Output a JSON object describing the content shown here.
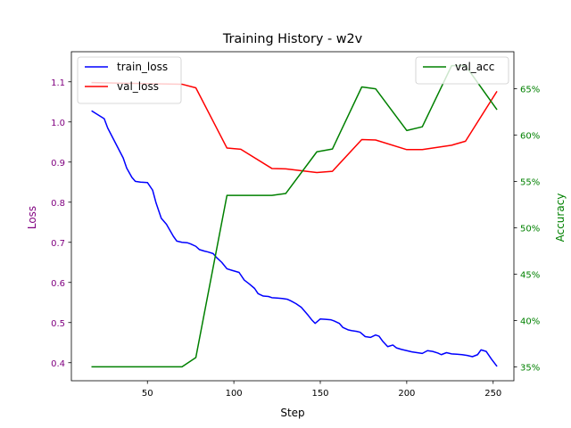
{
  "chart_data": {
    "type": "line",
    "title": "Training History - w2v",
    "xlabel": "Step",
    "ylabel_left": "Loss",
    "ylabel_right": "Accuracy",
    "xlim": [
      6,
      262
    ],
    "ylim_left": [
      0.355,
      1.175
    ],
    "ylim_right": [
      0.335,
      0.69
    ],
    "x_ticks": [
      50,
      100,
      150,
      200,
      250
    ],
    "x_tick_labels": [
      "50",
      "100",
      "150",
      "200",
      "250"
    ],
    "y_left_ticks": [
      0.4,
      0.5,
      0.6,
      0.7,
      0.8,
      0.9,
      1.0,
      1.1
    ],
    "y_left_tick_labels": [
      "0.4",
      "0.5",
      "0.6",
      "0.7",
      "0.8",
      "0.9",
      "1.0",
      "1.1"
    ],
    "y_right_ticks": [
      0.35,
      0.4,
      0.45,
      0.5,
      0.55,
      0.6,
      0.65
    ],
    "y_right_tick_labels": [
      "35%",
      "40%",
      "45%",
      "50%",
      "55%",
      "60%",
      "65%"
    ],
    "grid": false,
    "left_legend_placement": "upper-left",
    "right_legend_placement": "upper-right",
    "colors": {
      "train_loss": "#0000ff",
      "val_loss": "#ff0000",
      "val_acc": "#008000",
      "left_axis_text": "#800080",
      "right_axis_text": "#008000"
    },
    "series": [
      {
        "name": "train_loss",
        "axis": "left",
        "x": [
          18,
          22,
          25,
          27,
          30,
          33,
          36,
          38,
          41,
          43,
          46,
          50,
          53,
          55,
          58,
          61,
          63,
          65,
          67,
          70,
          73,
          75,
          78,
          80,
          83,
          85,
          88,
          90,
          93,
          96,
          99,
          103,
          106,
          109,
          112,
          114,
          117,
          120,
          122,
          125,
          128,
          131,
          133,
          136,
          139,
          141,
          143,
          145,
          147,
          150,
          153,
          156,
          158,
          161,
          163,
          166,
          168,
          171,
          173,
          176,
          179,
          182,
          184,
          186,
          189,
          192,
          194,
          197,
          200,
          203,
          206,
          209,
          212,
          215,
          218,
          220,
          223,
          226,
          229,
          232,
          235,
          238,
          241,
          243,
          246,
          249,
          252
        ],
        "values": [
          1.027,
          1.016,
          1.008,
          0.985,
          0.96,
          0.935,
          0.91,
          0.885,
          0.862,
          0.852,
          0.85,
          0.849,
          0.83,
          0.798,
          0.76,
          0.745,
          0.73,
          0.715,
          0.703,
          0.7,
          0.699,
          0.696,
          0.69,
          0.682,
          0.678,
          0.676,
          0.672,
          0.662,
          0.65,
          0.634,
          0.63,
          0.625,
          0.606,
          0.596,
          0.585,
          0.572,
          0.566,
          0.565,
          0.562,
          0.561,
          0.56,
          0.558,
          0.554,
          0.547,
          0.538,
          0.528,
          0.518,
          0.507,
          0.498,
          0.509,
          0.508,
          0.507,
          0.504,
          0.498,
          0.488,
          0.482,
          0.48,
          0.478,
          0.476,
          0.465,
          0.463,
          0.469,
          0.466,
          0.454,
          0.44,
          0.444,
          0.437,
          0.433,
          0.43,
          0.427,
          0.425,
          0.423,
          0.43,
          0.428,
          0.424,
          0.42,
          0.425,
          0.422,
          0.421,
          0.42,
          0.418,
          0.415,
          0.42,
          0.432,
          0.428,
          0.409,
          0.392
        ]
      },
      {
        "name": "val_loss",
        "axis": "left",
        "x": [
          18,
          70,
          78,
          96,
          104,
          122,
          130,
          148,
          157,
          174,
          182,
          200,
          209,
          226,
          234,
          252
        ],
        "values": [
          1.098,
          1.094,
          1.085,
          0.935,
          0.932,
          0.884,
          0.883,
          0.874,
          0.877,
          0.956,
          0.955,
          0.931,
          0.931,
          0.942,
          0.952,
          1.075
        ]
      },
      {
        "name": "val_acc",
        "axis": "right",
        "x": [
          18,
          70,
          78,
          96,
          104,
          122,
          130,
          148,
          157,
          174,
          182,
          200,
          209,
          226,
          234,
          252
        ],
        "values": [
          0.35,
          0.35,
          0.36,
          0.535,
          0.535,
          0.535,
          0.537,
          0.582,
          0.585,
          0.652,
          0.65,
          0.605,
          0.609,
          0.675,
          0.675,
          0.628
        ]
      }
    ]
  }
}
